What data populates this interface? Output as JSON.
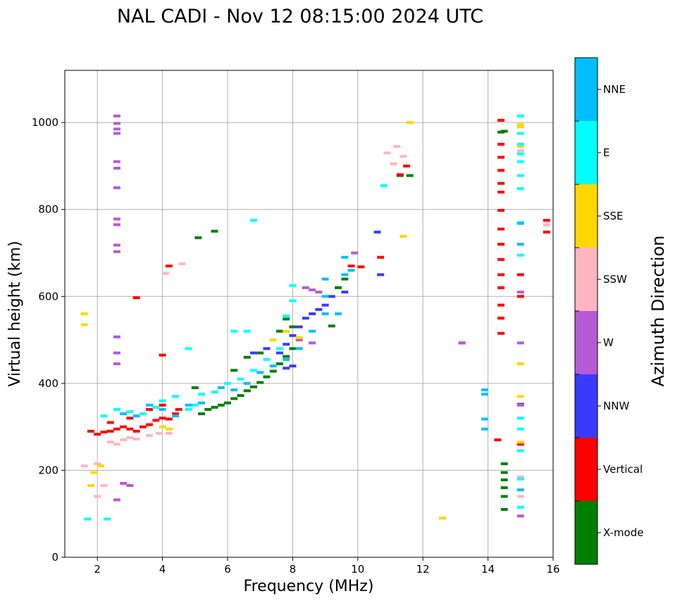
{
  "chart_data": {
    "type": "scatter",
    "title": "NAL CADI - Nov 12 08:15:00 2024 UTC",
    "xlabel": "Frequency (MHz)",
    "ylabel": "Virtual height (km)",
    "xlim": [
      1,
      16
    ],
    "ylim": [
      0,
      1120
    ],
    "xticks": [
      2,
      4,
      6,
      8,
      10,
      12,
      14,
      16
    ],
    "yticks": [
      0,
      200,
      400,
      600,
      800,
      1000
    ],
    "grid": true,
    "colorbar": {
      "label": "Azimuth Direction",
      "categories": [
        {
          "name": "X-mode",
          "color": "#008000"
        },
        {
          "name": "Vertical",
          "color": "#ff0000"
        },
        {
          "name": "NNW",
          "color": "#3a3aff"
        },
        {
          "name": "W",
          "color": "#b65ad6"
        },
        {
          "name": "SSW",
          "color": "#ffb6c1"
        },
        {
          "name": "SSE",
          "color": "#ffd700"
        },
        {
          "name": "E",
          "color": "#00ffff"
        },
        {
          "name": "NNE",
          "color": "#00bfff"
        }
      ]
    },
    "series": [
      {
        "name": "X-mode",
        "points": [
          [
            5.2,
            330
          ],
          [
            5.4,
            340
          ],
          [
            5.6,
            345
          ],
          [
            5.8,
            350
          ],
          [
            6.0,
            355
          ],
          [
            6.2,
            365
          ],
          [
            6.4,
            372
          ],
          [
            6.6,
            383
          ],
          [
            6.8,
            392
          ],
          [
            7.0,
            402
          ],
          [
            7.2,
            415
          ],
          [
            7.4,
            428
          ],
          [
            7.6,
            445
          ],
          [
            7.8,
            462
          ],
          [
            8.0,
            480
          ],
          [
            7.6,
            520
          ],
          [
            7.8,
            548
          ],
          [
            8.0,
            530
          ],
          [
            6.2,
            430
          ],
          [
            6.6,
            460
          ],
          [
            7.0,
            470
          ],
          [
            5.0,
            390
          ],
          [
            9.4,
            620
          ],
          [
            9.6,
            640
          ],
          [
            5.1,
            735
          ],
          [
            5.6,
            750
          ],
          [
            14.5,
            215
          ],
          [
            14.5,
            195
          ],
          [
            14.5,
            178
          ],
          [
            14.5,
            160
          ],
          [
            14.5,
            140
          ],
          [
            14.5,
            110
          ],
          [
            14.5,
            980
          ],
          [
            14.4,
            978
          ],
          [
            11.3,
            878
          ],
          [
            11.6,
            878
          ],
          [
            9.2,
            532
          ]
        ]
      },
      {
        "name": "Vertical",
        "points": [
          [
            1.8,
            290
          ],
          [
            2.0,
            283
          ],
          [
            2.2,
            288
          ],
          [
            2.4,
            290
          ],
          [
            2.6,
            295
          ],
          [
            2.8,
            300
          ],
          [
            3.0,
            295
          ],
          [
            3.2,
            290
          ],
          [
            3.4,
            300
          ],
          [
            3.6,
            305
          ],
          [
            3.8,
            315
          ],
          [
            4.0,
            320
          ],
          [
            4.2,
            318
          ],
          [
            4.4,
            330
          ],
          [
            2.4,
            310
          ],
          [
            3.0,
            320
          ],
          [
            3.6,
            340
          ],
          [
            4.0,
            350
          ],
          [
            4.5,
            340
          ],
          [
            4.2,
            670
          ],
          [
            4.0,
            465
          ],
          [
            3.2,
            597
          ],
          [
            9.8,
            670
          ],
          [
            10.1,
            668
          ],
          [
            10.7,
            690
          ],
          [
            14.4,
            1005
          ],
          [
            14.4,
            950
          ],
          [
            14.4,
            920
          ],
          [
            14.4,
            890
          ],
          [
            14.4,
            860
          ],
          [
            14.4,
            840
          ],
          [
            14.4,
            798
          ],
          [
            14.4,
            755
          ],
          [
            14.4,
            720
          ],
          [
            14.4,
            685
          ],
          [
            14.4,
            650
          ],
          [
            14.4,
            620
          ],
          [
            14.4,
            580
          ],
          [
            14.4,
            550
          ],
          [
            14.4,
            515
          ],
          [
            14.3,
            270
          ],
          [
            15.0,
            650
          ],
          [
            15.0,
            600
          ],
          [
            15.0,
            260
          ],
          [
            15.8,
            775
          ],
          [
            15.8,
            748
          ],
          [
            11.3,
            880
          ],
          [
            11.5,
            900
          ]
        ]
      },
      {
        "name": "NNW",
        "points": [
          [
            7.6,
            470
          ],
          [
            7.8,
            490
          ],
          [
            8.0,
            510
          ],
          [
            8.2,
            530
          ],
          [
            8.4,
            550
          ],
          [
            8.6,
            560
          ],
          [
            8.8,
            570
          ],
          [
            9.0,
            580
          ],
          [
            8.0,
            440
          ],
          [
            7.8,
            435
          ],
          [
            9.6,
            610
          ],
          [
            9.2,
            600
          ],
          [
            10.6,
            748
          ],
          [
            10.7,
            650
          ],
          [
            7.2,
            480
          ],
          [
            6.8,
            470
          ],
          [
            13.2,
            493
          ],
          [
            15.0,
            352
          ]
        ]
      },
      {
        "name": "W",
        "points": [
          [
            2.6,
            1015
          ],
          [
            2.6,
            998
          ],
          [
            2.6,
            985
          ],
          [
            2.6,
            975
          ],
          [
            2.6,
            910
          ],
          [
            2.6,
            895
          ],
          [
            2.6,
            850
          ],
          [
            2.6,
            778
          ],
          [
            2.6,
            765
          ],
          [
            2.6,
            718
          ],
          [
            2.6,
            703
          ],
          [
            2.6,
            507
          ],
          [
            2.6,
            470
          ],
          [
            2.6,
            445
          ],
          [
            2.6,
            132
          ],
          [
            2.8,
            170
          ],
          [
            3.0,
            165
          ],
          [
            8.4,
            620
          ],
          [
            8.6,
            615
          ],
          [
            8.8,
            610
          ],
          [
            8.2,
            500
          ],
          [
            8.6,
            493
          ],
          [
            13.2,
            493
          ],
          [
            15.0,
            610
          ],
          [
            15.0,
            493
          ],
          [
            15.0,
            350
          ],
          [
            15.0,
            95
          ],
          [
            9.9,
            700
          ]
        ]
      },
      {
        "name": "SSW",
        "points": [
          [
            1.6,
            210
          ],
          [
            2.0,
            215
          ],
          [
            2.2,
            165
          ],
          [
            2.0,
            140
          ],
          [
            2.4,
            265
          ],
          [
            2.6,
            260
          ],
          [
            2.8,
            270
          ],
          [
            3.0,
            275
          ],
          [
            3.2,
            272
          ],
          [
            3.6,
            280
          ],
          [
            3.9,
            285
          ],
          [
            4.2,
            285
          ],
          [
            4.6,
            675
          ],
          [
            4.1,
            653
          ],
          [
            10.9,
            930
          ],
          [
            11.2,
            945
          ],
          [
            11.1,
            905
          ],
          [
            11.4,
            922
          ],
          [
            15.8,
            765
          ],
          [
            15.0,
            935
          ],
          [
            15.0,
            185
          ],
          [
            15.0,
            140
          ]
        ]
      },
      {
        "name": "SSE",
        "points": [
          [
            1.6,
            560
          ],
          [
            1.6,
            535
          ],
          [
            1.9,
            195
          ],
          [
            2.1,
            210
          ],
          [
            1.8,
            165
          ],
          [
            4.0,
            300
          ],
          [
            4.2,
            295
          ],
          [
            7.4,
            500
          ],
          [
            7.8,
            520
          ],
          [
            8.2,
            505
          ],
          [
            11.4,
            738
          ],
          [
            12.6,
            90
          ],
          [
            15.0,
            995
          ],
          [
            15.0,
            990
          ],
          [
            15.0,
            945
          ],
          [
            15.0,
            445
          ],
          [
            15.0,
            370
          ],
          [
            15.0,
            265
          ],
          [
            11.6,
            1000
          ]
        ]
      },
      {
        "name": "E",
        "points": [
          [
            2.2,
            325
          ],
          [
            2.6,
            340
          ],
          [
            3.0,
            335
          ],
          [
            3.4,
            330
          ],
          [
            3.8,
            345
          ],
          [
            4.0,
            360
          ],
          [
            4.4,
            370
          ],
          [
            4.8,
            340
          ],
          [
            5.0,
            350
          ],
          [
            5.2,
            375
          ],
          [
            5.6,
            380
          ],
          [
            6.0,
            400
          ],
          [
            6.4,
            410
          ],
          [
            6.8,
            430
          ],
          [
            7.2,
            455
          ],
          [
            7.6,
            480
          ],
          [
            7.8,
            555
          ],
          [
            8.0,
            590
          ],
          [
            8.0,
            625
          ],
          [
            4.8,
            480
          ],
          [
            6.2,
            520
          ],
          [
            6.6,
            520
          ],
          [
            6.8,
            775
          ],
          [
            10.8,
            855
          ],
          [
            15.0,
            1015
          ],
          [
            15.0,
            975
          ],
          [
            15.0,
            950
          ],
          [
            15.0,
            928
          ],
          [
            15.0,
            910
          ],
          [
            15.0,
            878
          ],
          [
            15.0,
            848
          ],
          [
            15.0,
            770
          ],
          [
            15.0,
            695
          ],
          [
            15.0,
            320
          ],
          [
            15.0,
            295
          ],
          [
            15.0,
            245
          ],
          [
            15.0,
            180
          ],
          [
            15.0,
            115
          ],
          [
            1.7,
            88
          ],
          [
            2.3,
            88
          ]
        ]
      },
      {
        "name": "NNE",
        "points": [
          [
            2.8,
            330
          ],
          [
            3.2,
            325
          ],
          [
            3.6,
            350
          ],
          [
            4.0,
            340
          ],
          [
            4.4,
            325
          ],
          [
            4.8,
            350
          ],
          [
            5.2,
            355
          ],
          [
            5.8,
            390
          ],
          [
            6.2,
            385
          ],
          [
            6.6,
            400
          ],
          [
            7.0,
            425
          ],
          [
            7.4,
            440
          ],
          [
            7.8,
            455
          ],
          [
            8.2,
            480
          ],
          [
            8.6,
            520
          ],
          [
            9.0,
            560
          ],
          [
            9.0,
            600
          ],
          [
            9.0,
            640
          ],
          [
            9.6,
            650
          ],
          [
            9.6,
            690
          ],
          [
            9.8,
            660
          ],
          [
            13.9,
            385
          ],
          [
            13.9,
            375
          ],
          [
            13.9,
            318
          ],
          [
            13.9,
            295
          ],
          [
            15.0,
            720
          ],
          [
            15.0,
            155
          ],
          [
            15.0,
            768
          ],
          [
            9.4,
            560
          ]
        ]
      }
    ]
  }
}
